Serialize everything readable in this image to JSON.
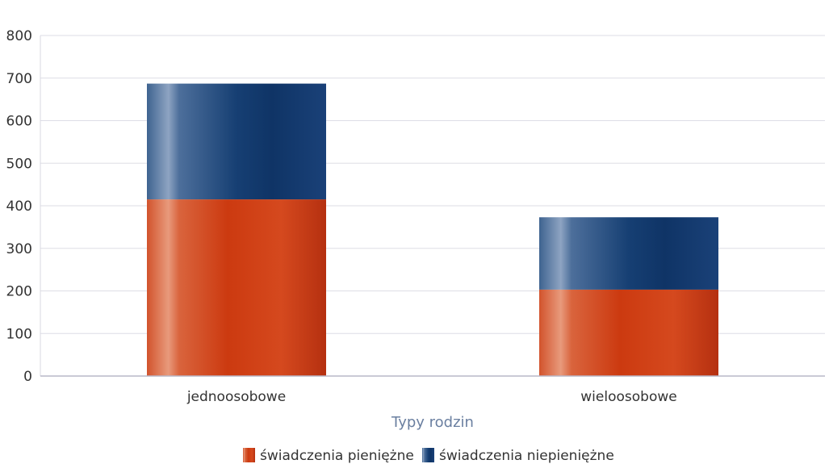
{
  "chart_data": {
    "type": "bar",
    "stacked": true,
    "title": "",
    "xlabel": "Typy rodzin",
    "ylabel": "",
    "ylim": [
      0,
      800
    ],
    "yticks": [
      0,
      100,
      200,
      300,
      400,
      500,
      600,
      700,
      800
    ],
    "grid": true,
    "legend_position": "bottom",
    "categories": [
      "jednoosobowe",
      "wieloosobowe"
    ],
    "series": [
      {
        "name": "świadczenia pieniężne",
        "values": [
          415,
          203
        ],
        "color": "#cc3a12"
      },
      {
        "name": "świadczenia niepieniężne",
        "values": [
          272,
          170
        ],
        "color": "#123e72"
      }
    ]
  }
}
